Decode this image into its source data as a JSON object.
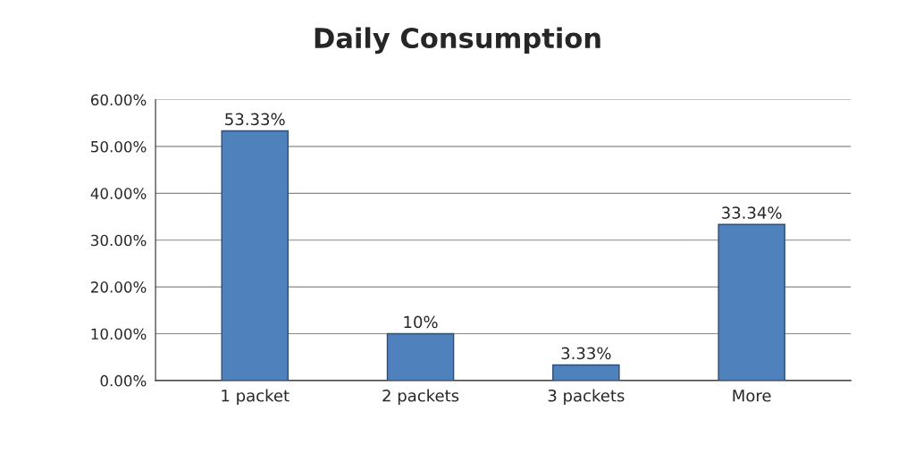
{
  "chart_data": {
    "type": "bar",
    "title": "Daily Consumption",
    "categories": [
      "1 packet",
      "2 packets",
      "3 packets",
      "More"
    ],
    "values": [
      53.33,
      10,
      3.33,
      33.34
    ],
    "value_labels": [
      "53.33%",
      "10%",
      "3.33%",
      "33.34%"
    ],
    "color": "#4f81bd",
    "ylim": [
      0,
      60
    ],
    "yticks": [
      {
        "value": 0,
        "label": "0.00%"
      },
      {
        "value": 10,
        "label": "10.00%"
      },
      {
        "value": 20,
        "label": "20.00%"
      },
      {
        "value": 30,
        "label": "30.00%"
      },
      {
        "value": 40,
        "label": "40.00%"
      },
      {
        "value": 50,
        "label": "50.00%"
      },
      {
        "value": 60,
        "label": "60.00%"
      }
    ],
    "grid": "y"
  }
}
